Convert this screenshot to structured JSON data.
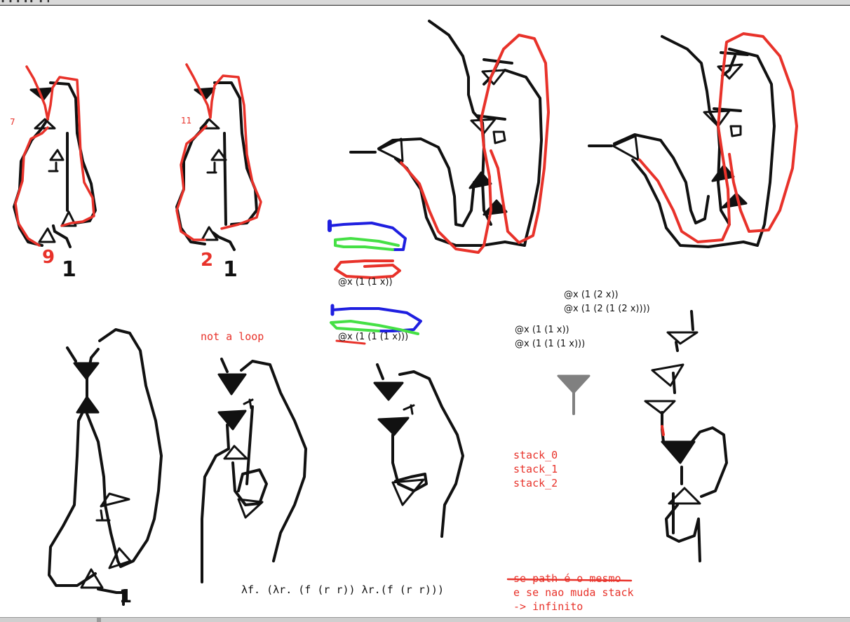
{
  "window": {
    "title_strip": "▐ ▐ ▐ ▐ ▌ ▐ ▐"
  },
  "colors": {
    "ink": "#111111",
    "red": "#e8322a",
    "blue": "#1f1fe0",
    "green": "#45e045",
    "gray": "#808080"
  },
  "labels": {
    "num_7": "7",
    "num_11": "11",
    "hand_9": "9",
    "hand_1a": "1",
    "hand_2": "2",
    "hand_1b": "1",
    "hand_1c": "1",
    "expr_1_1_x": "@x (1 (1 x))",
    "expr_1_1_1_x": "@x (1 (1 (1 x)))",
    "expr_group_a_1": "@x (1 (2 x))",
    "expr_group_a_2": "@x (1 (2 (1 (2 x))))",
    "expr_group_b_1": "@x (1 (1 x))",
    "expr_group_b_2": "@x (1 (1 (1 x)))",
    "not_a_loop": "not a loop",
    "stack_0": "stack_0",
    "stack_1": "stack_1",
    "stack_2": "stack_2",
    "lambda_expr": "λf. (λr. (f (r r)) λr.(f (r r)))",
    "note_line_1": "se path é o mesmo",
    "note_line_2": "e se nao muda stack",
    "note_line_3": "-> infinito"
  }
}
